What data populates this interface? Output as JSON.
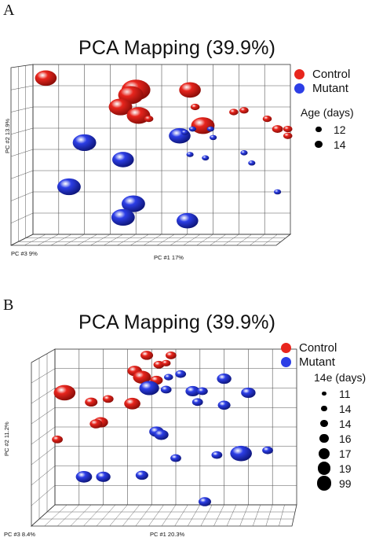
{
  "chart_data": [
    {
      "panel": "A",
      "type": "scatter",
      "title": "PCA Mapping (39.9%)",
      "xlabel": "PC #1  17%",
      "ylabel": "PC #2 13.9%",
      "zlabel": "PC #3   9%",
      "grid": true,
      "legend_placement": "right",
      "legend": [
        {
          "label": "Control",
          "color": "#e8251d"
        },
        {
          "label": "Mutant",
          "color": "#2c3ee6"
        }
      ],
      "size_legend_title": "Age (days)",
      "size_legend": [
        {
          "label": "12",
          "size": 2
        },
        {
          "label": "14",
          "size": 3
        }
      ],
      "series": [
        {
          "name": "Control",
          "color": "#e8251d",
          "points": [
            {
              "x": 0.05,
              "y": 0.92,
              "s": 12
            },
            {
              "x": 0.4,
              "y": 0.85,
              "s": 16
            },
            {
              "x": 0.38,
              "y": 0.82,
              "s": 14
            },
            {
              "x": 0.34,
              "y": 0.75,
              "s": 13
            },
            {
              "x": 0.41,
              "y": 0.7,
              "s": 13
            },
            {
              "x": 0.45,
              "y": 0.68,
              "s": 5
            },
            {
              "x": 0.61,
              "y": 0.85,
              "s": 12
            },
            {
              "x": 0.63,
              "y": 0.75,
              "s": 5
            },
            {
              "x": 0.66,
              "y": 0.64,
              "s": 13
            },
            {
              "x": 0.78,
              "y": 0.72,
              "s": 5
            },
            {
              "x": 0.82,
              "y": 0.73,
              "s": 5
            },
            {
              "x": 0.91,
              "y": 0.68,
              "s": 5
            },
            {
              "x": 0.95,
              "y": 0.62,
              "s": 6
            },
            {
              "x": 0.99,
              "y": 0.62,
              "s": 5
            },
            {
              "x": 0.99,
              "y": 0.58,
              "s": 5
            }
          ]
        },
        {
          "name": "Mutant",
          "color": "#2c3ee6",
          "points": [
            {
              "x": 0.2,
              "y": 0.54,
              "s": 13
            },
            {
              "x": 0.35,
              "y": 0.44,
              "s": 12
            },
            {
              "x": 0.14,
              "y": 0.28,
              "s": 13
            },
            {
              "x": 0.39,
              "y": 0.18,
              "s": 13
            },
            {
              "x": 0.35,
              "y": 0.1,
              "s": 13
            },
            {
              "x": 0.6,
              "y": 0.08,
              "s": 12
            },
            {
              "x": 0.57,
              "y": 0.58,
              "s": 12
            },
            {
              "x": 0.59,
              "y": 0.6,
              "s": 4
            },
            {
              "x": 0.62,
              "y": 0.62,
              "s": 4
            },
            {
              "x": 0.69,
              "y": 0.62,
              "s": 4
            },
            {
              "x": 0.7,
              "y": 0.57,
              "s": 4
            },
            {
              "x": 0.61,
              "y": 0.47,
              "s": 4
            },
            {
              "x": 0.67,
              "y": 0.45,
              "s": 4
            },
            {
              "x": 0.82,
              "y": 0.48,
              "s": 4
            },
            {
              "x": 0.85,
              "y": 0.42,
              "s": 4
            },
            {
              "x": 0.95,
              "y": 0.25,
              "s": 4
            }
          ]
        }
      ]
    },
    {
      "panel": "B",
      "type": "scatter",
      "title": "PCA Mapping (39.9%)",
      "xlabel": "PC #1 20.3%",
      "ylabel": "PC #2 11.2%",
      "zlabel": "PC #3 8.4%",
      "grid": true,
      "legend_placement": "right",
      "legend": [
        {
          "label": "Control",
          "color": "#e8251d"
        },
        {
          "label": "Mutant",
          "color": "#2c3ee6"
        }
      ],
      "size_legend_title": "14e (days)",
      "size_legend": [
        {
          "label": "11",
          "size": 1
        },
        {
          "label": "14",
          "size": 2
        },
        {
          "label": "14",
          "size": 3
        },
        {
          "label": "16",
          "size": 4
        },
        {
          "label": "17",
          "size": 5
        },
        {
          "label": "19",
          "size": 6
        },
        {
          "label": "99",
          "size": 7
        }
      ],
      "series": [
        {
          "name": "Control",
          "color": "#e8251d",
          "points": [
            {
              "x": 0.04,
              "y": 0.72,
              "s": 12
            },
            {
              "x": 0.33,
              "y": 0.86,
              "s": 8
            },
            {
              "x": 0.36,
              "y": 0.82,
              "s": 10
            },
            {
              "x": 0.38,
              "y": 0.96,
              "s": 7
            },
            {
              "x": 0.43,
              "y": 0.9,
              "s": 6
            },
            {
              "x": 0.46,
              "y": 0.91,
              "s": 5
            },
            {
              "x": 0.42,
              "y": 0.8,
              "s": 7
            },
            {
              "x": 0.48,
              "y": 0.96,
              "s": 6
            },
            {
              "x": 0.15,
              "y": 0.66,
              "s": 7
            },
            {
              "x": 0.22,
              "y": 0.68,
              "s": 6
            },
            {
              "x": 0.32,
              "y": 0.65,
              "s": 9
            },
            {
              "x": 0.19,
              "y": 0.53,
              "s": 8
            },
            {
              "x": 0.17,
              "y": 0.52,
              "s": 7
            },
            {
              "x": 0.01,
              "y": 0.42,
              "s": 6
            }
          ]
        },
        {
          "name": "Mutant",
          "color": "#2c3ee6",
          "points": [
            {
              "x": 0.39,
              "y": 0.75,
              "s": 11
            },
            {
              "x": 0.46,
              "y": 0.74,
              "s": 6
            },
            {
              "x": 0.47,
              "y": 0.82,
              "s": 5
            },
            {
              "x": 0.52,
              "y": 0.84,
              "s": 6
            },
            {
              "x": 0.57,
              "y": 0.73,
              "s": 8
            },
            {
              "x": 0.61,
              "y": 0.73,
              "s": 6
            },
            {
              "x": 0.59,
              "y": 0.66,
              "s": 6
            },
            {
              "x": 0.7,
              "y": 0.81,
              "s": 8
            },
            {
              "x": 0.8,
              "y": 0.72,
              "s": 8
            },
            {
              "x": 0.7,
              "y": 0.64,
              "s": 7
            },
            {
              "x": 0.42,
              "y": 0.47,
              "s": 8
            },
            {
              "x": 0.44,
              "y": 0.45,
              "s": 8
            },
            {
              "x": 0.5,
              "y": 0.3,
              "s": 6
            },
            {
              "x": 0.67,
              "y": 0.32,
              "s": 6
            },
            {
              "x": 0.77,
              "y": 0.33,
              "s": 12
            },
            {
              "x": 0.88,
              "y": 0.35,
              "s": 6
            },
            {
              "x": 0.12,
              "y": 0.18,
              "s": 9
            },
            {
              "x": 0.2,
              "y": 0.18,
              "s": 8
            },
            {
              "x": 0.36,
              "y": 0.19,
              "s": 7
            },
            {
              "x": 0.62,
              "y": 0.02,
              "s": 7
            }
          ]
        }
      ]
    }
  ]
}
